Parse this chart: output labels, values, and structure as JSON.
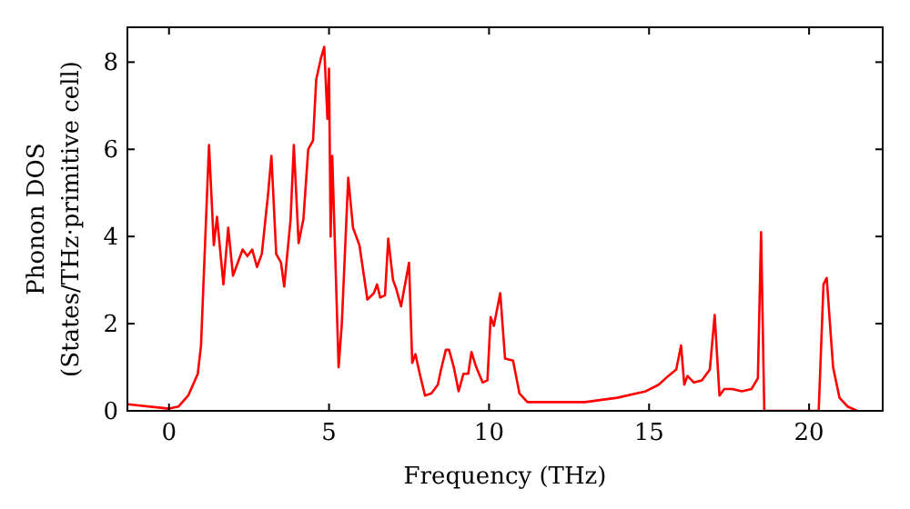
{
  "chart_data": {
    "type": "line",
    "xlabel": "Frequency (THz)",
    "ylabel": "Phonon DOS\n(States/THz·primitive cell)",
    "xlim": [
      -1.3,
      22.3
    ],
    "ylim": [
      0,
      8.8
    ],
    "xticks": [
      0,
      5,
      10,
      15,
      20
    ],
    "yticks": [
      0,
      2,
      4,
      6,
      8
    ],
    "grid": false,
    "marker": "none",
    "line_style": "solid",
    "series": [
      {
        "color": "#ff0000",
        "x": [
          -1.3,
          0,
          0.3,
          0.6,
          0.9,
          1.0,
          1.25,
          1.4,
          1.5,
          1.7,
          1.85,
          2.0,
          2.3,
          2.45,
          2.6,
          2.75,
          2.9,
          3.1,
          3.2,
          3.35,
          3.5,
          3.6,
          3.8,
          3.9,
          4.05,
          4.2,
          4.35,
          4.5,
          4.6,
          4.75,
          4.85,
          4.95,
          5.0,
          5.05,
          5.1,
          5.3,
          5.4,
          5.6,
          5.75,
          5.95,
          6.05,
          6.2,
          6.4,
          6.5,
          6.6,
          6.75,
          6.85,
          7.0,
          7.1,
          7.25,
          7.35,
          7.5,
          7.6,
          7.7,
          7.85,
          8.0,
          8.2,
          8.4,
          8.5,
          8.65,
          8.75,
          8.9,
          9.05,
          9.2,
          9.35,
          9.45,
          9.6,
          9.8,
          9.95,
          10.05,
          10.15,
          10.35,
          10.5,
          10.75,
          10.95,
          11.2,
          13,
          14,
          14.9,
          15.3,
          15.6,
          15.85,
          16.0,
          16.1,
          16.2,
          16.4,
          16.65,
          16.9,
          17.05,
          17.2,
          17.35,
          17.6,
          17.9,
          18.2,
          18.4,
          18.5,
          18.6,
          20.3,
          20.45,
          20.55,
          20.75,
          20.95,
          21.2,
          21.5
        ],
        "values": [
          0.15,
          0.05,
          0.1,
          0.35,
          0.85,
          1.5,
          6.1,
          3.8,
          4.45,
          2.9,
          4.2,
          3.1,
          3.7,
          3.55,
          3.7,
          3.3,
          3.6,
          5.0,
          5.85,
          3.6,
          3.4,
          2.85,
          4.4,
          6.1,
          3.85,
          4.4,
          6.0,
          6.2,
          7.6,
          8.1,
          8.35,
          6.7,
          7.85,
          4.0,
          5.85,
          1.0,
          2.0,
          5.35,
          4.2,
          3.8,
          3.3,
          2.55,
          2.7,
          2.9,
          2.6,
          2.65,
          3.95,
          3.0,
          2.8,
          2.4,
          2.8,
          3.4,
          1.1,
          1.3,
          0.8,
          0.35,
          0.4,
          0.6,
          0.95,
          1.4,
          1.4,
          1.0,
          0.45,
          0.85,
          0.85,
          1.35,
          1.0,
          0.65,
          0.7,
          2.15,
          1.95,
          2.7,
          1.2,
          1.15,
          0.4,
          0.2,
          0.2,
          0.3,
          0.45,
          0.6,
          0.8,
          0.95,
          1.5,
          0.6,
          0.8,
          0.65,
          0.7,
          0.95,
          2.2,
          0.35,
          0.5,
          0.5,
          0.45,
          0.5,
          0.75,
          4.1,
          0,
          0,
          2.9,
          3.05,
          1.0,
          0.3,
          0.1,
          0
        ]
      }
    ]
  }
}
